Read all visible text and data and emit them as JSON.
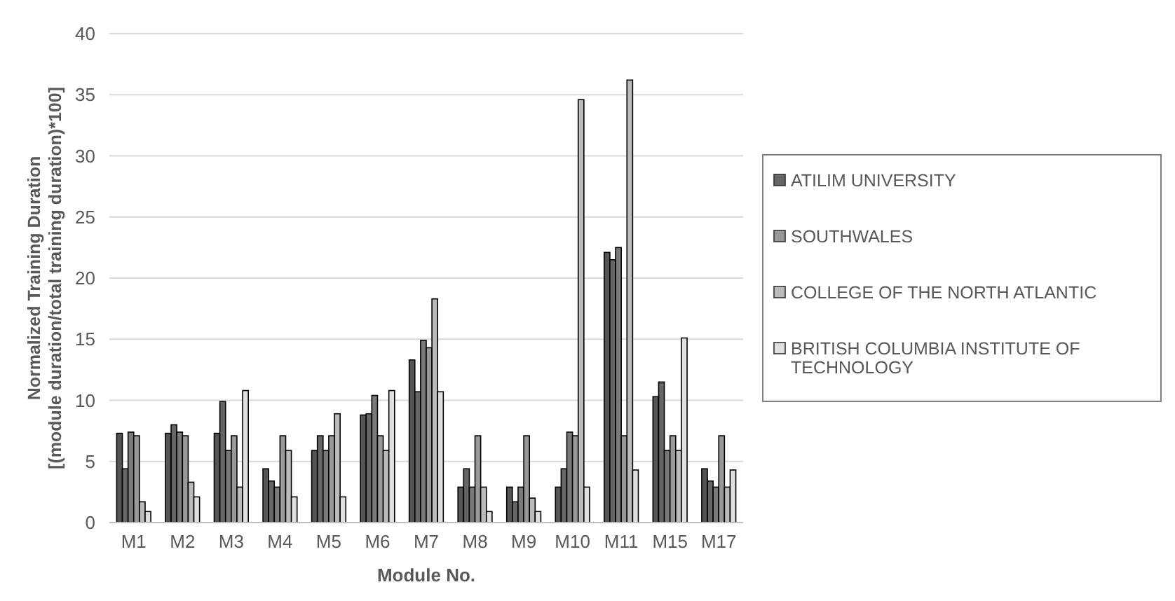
{
  "chart_data": {
    "type": "bar",
    "xlabel": "Module No.",
    "ylabel": "Normalized Training Duration\n[(module duration/total training duration)*100]",
    "categories": [
      "M1",
      "M2",
      "M3",
      "M4",
      "M5",
      "M6",
      "M7",
      "M8",
      "M9",
      "M10",
      "M11",
      "M15",
      "M17"
    ],
    "series": [
      {
        "color": "#555555",
        "values": [
          7.3,
          7.3,
          7.3,
          4.4,
          5.9,
          8.8,
          13.3,
          2.9,
          2.9,
          2.9,
          22.1,
          10.3,
          4.4
        ]
      },
      {
        "name": "ATILIM UNIVERSITY",
        "color": "#666666",
        "values": [
          4.4,
          8.0,
          9.9,
          3.4,
          7.1,
          8.9,
          10.7,
          4.4,
          1.7,
          4.4,
          21.5,
          11.5,
          3.4
        ]
      },
      {
        "color": "#7a7a7a",
        "values": [
          7.4,
          7.4,
          5.9,
          2.9,
          5.9,
          10.4,
          14.9,
          2.9,
          2.9,
          7.4,
          22.5,
          5.9,
          2.9
        ]
      },
      {
        "name": "SOUTHWALES",
        "color": "#999999",
        "values": [
          7.1,
          7.1,
          7.1,
          7.1,
          7.1,
          7.1,
          14.3,
          7.1,
          7.1,
          7.1,
          7.1,
          7.1,
          7.1
        ]
      },
      {
        "name": "COLLEGE OF THE NORTH ATLANTIC",
        "color": "#bbbbbb",
        "values": [
          1.7,
          3.3,
          2.9,
          5.9,
          8.9,
          5.9,
          18.3,
          2.9,
          2.0,
          34.6,
          36.2,
          5.9,
          2.9
        ]
      },
      {
        "name": "BRITISH COLUMBIA INSTITUTE OF TECHNOLOGY",
        "color": "#e0e0e0",
        "values": [
          0.9,
          2.1,
          10.8,
          2.1,
          2.1,
          10.8,
          10.7,
          0.9,
          0.9,
          2.9,
          4.3,
          15.1,
          4.3
        ]
      }
    ],
    "ylim": [
      0,
      40
    ],
    "yticks": [
      0,
      5,
      10,
      15,
      20,
      25,
      30,
      35,
      40
    ],
    "grid": "y",
    "legend": "right"
  }
}
